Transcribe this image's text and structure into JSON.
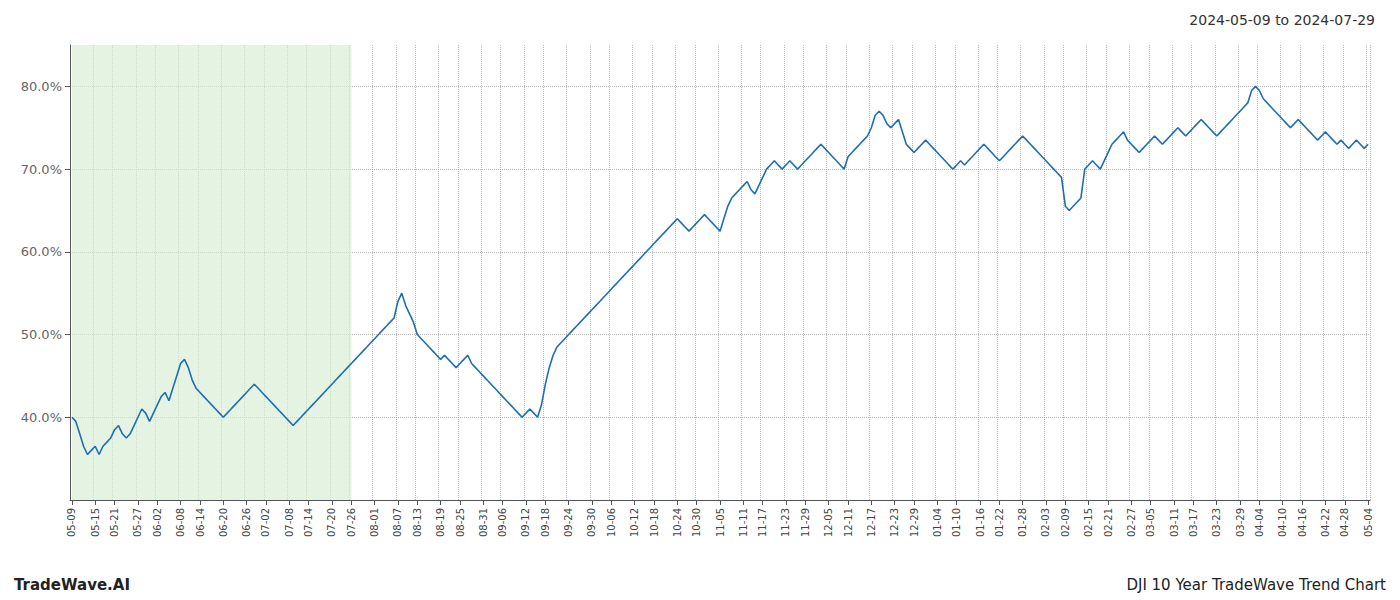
{
  "chart_data": {
    "type": "line",
    "title": "2024-05-09 to 2024-07-29",
    "annotations": [
      "TradeWave.AI",
      "DJI 10 Year TradeWave Trend Chart"
    ],
    "color": "#1f6eb5",
    "grid": true,
    "ylim": [
      30.0,
      85.0
    ],
    "yticks": [
      {
        "value": 40.0,
        "label": "40.0%"
      },
      {
        "value": 50.0,
        "label": "50.0%"
      },
      {
        "value": 60.0,
        "label": "60.0%"
      },
      {
        "value": 70.0,
        "label": "70.0%"
      },
      {
        "value": 80.0,
        "label": "80.0%"
      }
    ],
    "shaded": {
      "start": "05-09",
      "end": "07-26",
      "color": "#d6ecd2"
    },
    "categories": [
      "05-09",
      null,
      null,
      null,
      null,
      null,
      "05-15",
      null,
      null,
      null,
      null,
      "05-21",
      null,
      null,
      null,
      null,
      null,
      "05-27",
      null,
      null,
      null,
      null,
      "06-02",
      null,
      null,
      null,
      null,
      null,
      "06-08",
      null,
      null,
      null,
      null,
      "06-14",
      null,
      null,
      null,
      null,
      null,
      "06-20",
      null,
      null,
      null,
      null,
      null,
      "06-26",
      null,
      null,
      null,
      null,
      "07-02",
      null,
      null,
      null,
      null,
      null,
      "07-08",
      null,
      null,
      null,
      null,
      "07-14",
      null,
      null,
      null,
      null,
      null,
      "07-20",
      null,
      null,
      null,
      null,
      "07-26",
      null,
      null,
      null,
      null,
      null,
      "08-01",
      null,
      null,
      null,
      null,
      null,
      "08-07",
      null,
      null,
      null,
      null,
      "08-13",
      null,
      null,
      null,
      null,
      null,
      "08-19",
      null,
      null,
      null,
      null,
      "08-25",
      null,
      null,
      null,
      null,
      null,
      "08-31",
      null,
      null,
      null,
      null,
      "09-06",
      null,
      null,
      null,
      null,
      null,
      "09-12",
      null,
      null,
      null,
      null,
      "09-18",
      null,
      null,
      null,
      null,
      null,
      "09-24",
      null,
      null,
      null,
      null,
      null,
      "09-30",
      null,
      null,
      null,
      null,
      "10-06",
      null,
      null,
      null,
      null,
      null,
      "10-12",
      null,
      null,
      null,
      null,
      "10-18",
      null,
      null,
      null,
      null,
      null,
      "10-24",
      null,
      null,
      null,
      null,
      "10-30",
      null,
      null,
      null,
      null,
      null,
      "11-05",
      null,
      null,
      null,
      null,
      null,
      "11-11",
      null,
      null,
      null,
      null,
      "11-17",
      null,
      null,
      null,
      null,
      null,
      "11-23",
      null,
      null,
      null,
      null,
      "11-29",
      null,
      null,
      null,
      null,
      null,
      "12-05",
      null,
      null,
      null,
      null,
      "12-11",
      null,
      null,
      null,
      null,
      null,
      "12-17",
      null,
      null,
      null,
      null,
      null,
      "12-23",
      null,
      null,
      null,
      null,
      "12-29",
      null,
      null,
      null,
      null,
      null,
      "01-04",
      null,
      null,
      null,
      null,
      "01-10",
      null,
      null,
      null,
      null,
      null,
      "01-16",
      null,
      null,
      null,
      null,
      "01-22",
      null,
      null,
      null,
      null,
      null,
      "01-28",
      null,
      null,
      null,
      null,
      null,
      "02-03",
      null,
      null,
      null,
      null,
      "02-09",
      null,
      null,
      null,
      null,
      null,
      "02-15",
      null,
      null,
      null,
      null,
      "02-21",
      null,
      null,
      null,
      null,
      null,
      "02-27",
      null,
      null,
      null,
      null,
      "03-05",
      null,
      null,
      null,
      null,
      null,
      "03-11",
      null,
      null,
      null,
      null,
      "03-17",
      null,
      null,
      null,
      null,
      null,
      "03-23",
      null,
      null,
      null,
      null,
      null,
      "03-29",
      null,
      null,
      null,
      null,
      "04-04",
      null,
      null,
      null,
      null,
      null,
      "04-10",
      null,
      null,
      null,
      null,
      "04-16",
      null,
      null,
      null,
      null,
      null,
      "04-22",
      null,
      null,
      null,
      null,
      "04-28",
      null,
      null,
      null,
      null,
      null,
      "05-04"
    ],
    "values": [
      40.0,
      39.5,
      38.0,
      36.5,
      35.5,
      36.0,
      36.5,
      35.5,
      36.5,
      37.0,
      37.5,
      38.5,
      39.0,
      38.0,
      37.5,
      38.0,
      39.0,
      40.0,
      41.0,
      40.5,
      39.5,
      40.5,
      41.5,
      42.5,
      43.0,
      42.0,
      43.5,
      45.0,
      46.5,
      47.0,
      46.0,
      44.5,
      43.5,
      43.0,
      42.5,
      42.0,
      41.5,
      41.0,
      40.5,
      40.0,
      40.5,
      41.0,
      41.5,
      42.0,
      42.5,
      43.0,
      43.5,
      44.0,
      43.5,
      43.0,
      42.5,
      42.0,
      41.5,
      41.0,
      40.5,
      40.0,
      39.5,
      39.0,
      39.5,
      40.0,
      40.5,
      41.0,
      41.5,
      42.0,
      42.5,
      43.0,
      43.5,
      44.0,
      44.5,
      45.0,
      45.5,
      46.0,
      46.5,
      47.0,
      47.5,
      48.0,
      48.5,
      49.0,
      49.5,
      50.0,
      50.5,
      51.0,
      51.5,
      52.0,
      54.0,
      55.0,
      53.5,
      52.5,
      51.5,
      50.0,
      49.5,
      49.0,
      48.5,
      48.0,
      47.5,
      47.0,
      47.5,
      47.0,
      46.5,
      46.0,
      46.5,
      47.0,
      47.5,
      46.5,
      46.0,
      45.5,
      45.0,
      44.5,
      44.0,
      43.5,
      43.0,
      42.5,
      42.0,
      41.5,
      41.0,
      40.5,
      40.0,
      40.5,
      41.0,
      40.5,
      40.0,
      41.5,
      44.0,
      46.0,
      47.5,
      48.5,
      49.0,
      49.5,
      50.0,
      50.5,
      51.0,
      51.5,
      52.0,
      52.5,
      53.0,
      53.5,
      54.0,
      54.5,
      55.0,
      55.5,
      56.0,
      56.5,
      57.0,
      57.5,
      58.0,
      58.5,
      59.0,
      59.5,
      60.0,
      60.5,
      61.0,
      61.5,
      62.0,
      62.5,
      63.0,
      63.5,
      64.0,
      63.5,
      63.0,
      62.5,
      63.0,
      63.5,
      64.0,
      64.5,
      64.0,
      63.5,
      63.0,
      62.5,
      64.0,
      65.5,
      66.5,
      67.0,
      67.5,
      68.0,
      68.5,
      67.5,
      67.0,
      68.0,
      69.0,
      70.0,
      70.5,
      71.0,
      70.5,
      70.0,
      70.5,
      71.0,
      70.5,
      70.0,
      70.5,
      71.0,
      71.5,
      72.0,
      72.5,
      73.0,
      72.5,
      72.0,
      71.5,
      71.0,
      70.5,
      70.0,
      71.5,
      72.0,
      72.5,
      73.0,
      73.5,
      74.0,
      75.0,
      76.5,
      77.0,
      76.5,
      75.5,
      75.0,
      75.5,
      76.0,
      74.5,
      73.0,
      72.5,
      72.0,
      72.5,
      73.0,
      73.5,
      73.0,
      72.5,
      72.0,
      71.5,
      71.0,
      70.5,
      70.0,
      70.5,
      71.0,
      70.5,
      71.0,
      71.5,
      72.0,
      72.5,
      73.0,
      72.5,
      72.0,
      71.5,
      71.0,
      71.5,
      72.0,
      72.5,
      73.0,
      73.5,
      74.0,
      73.5,
      73.0,
      72.5,
      72.0,
      71.5,
      71.0,
      70.5,
      70.0,
      69.5,
      69.0,
      65.5,
      65.0,
      65.5,
      66.0,
      66.5,
      70.0,
      70.5,
      71.0,
      70.5,
      70.0,
      71.0,
      72.0,
      73.0,
      73.5,
      74.0,
      74.5,
      73.5,
      73.0,
      72.5,
      72.0,
      72.5,
      73.0,
      73.5,
      74.0,
      73.5,
      73.0,
      73.5,
      74.0,
      74.5,
      75.0,
      74.5,
      74.0,
      74.5,
      75.0,
      75.5,
      76.0,
      75.5,
      75.0,
      74.5,
      74.0,
      74.5,
      75.0,
      75.5,
      76.0,
      76.5,
      77.0,
      77.5,
      78.0,
      79.5,
      80.0,
      79.5,
      78.5,
      78.0,
      77.5,
      77.0,
      76.5,
      76.0,
      75.5,
      75.0,
      75.5,
      76.0,
      75.5,
      75.0,
      74.5,
      74.0,
      73.5,
      74.0,
      74.5,
      74.0,
      73.5,
      73.0,
      73.5,
      73.0,
      72.5,
      73.0,
      73.5,
      73.0,
      72.5,
      73.0
    ]
  }
}
